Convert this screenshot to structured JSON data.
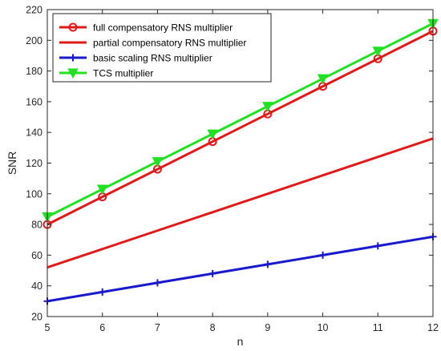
{
  "chart_data": {
    "type": "line",
    "xlabel": "n",
    "ylabel": "SNR",
    "xlim": [
      5,
      12
    ],
    "ylim": [
      20,
      220
    ],
    "x_ticks": [
      5,
      6,
      7,
      8,
      9,
      10,
      11,
      12
    ],
    "y_ticks": [
      20,
      40,
      60,
      80,
      100,
      120,
      140,
      160,
      180,
      200,
      220
    ],
    "grid": false,
    "legend_position": "top-left",
    "x": [
      5,
      6,
      7,
      8,
      9,
      10,
      11,
      12
    ],
    "series": [
      {
        "name": "full compensatory RNS multiplier",
        "values": [
          80,
          98,
          116,
          134,
          152,
          170,
          188,
          206
        ],
        "color": "#e01a1a",
        "marker": "circle"
      },
      {
        "name": "partial compensatory RNS multiplier",
        "values": [
          52,
          64,
          76,
          88,
          100,
          112,
          124,
          136
        ],
        "color": "#e01a1a",
        "marker": "none"
      },
      {
        "name": "basic scaling RNS multiplier",
        "values": [
          30,
          36,
          42,
          48,
          54,
          60,
          66,
          72
        ],
        "color": "#1a1acc",
        "marker": "plus"
      },
      {
        "name": "TCS multiplier",
        "values": [
          85,
          103,
          121,
          139,
          157,
          175,
          193,
          211
        ],
        "color": "#22e022",
        "marker": "triangle-down"
      }
    ]
  }
}
